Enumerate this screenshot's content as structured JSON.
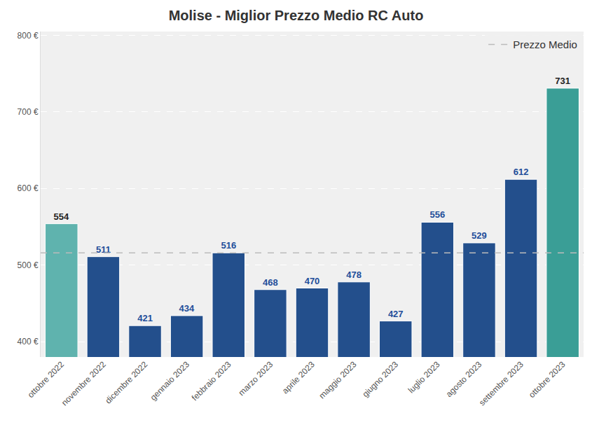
{
  "chart_data": {
    "type": "bar",
    "title": "Molise - Miglior Prezzo Medio RC Auto",
    "categories": [
      "ottobre 2022",
      "novembre 2022",
      "dicembre 2022",
      "gennaio 2023",
      "febbraio 2023",
      "marzo 2023",
      "aprile 2023",
      "maggio 2023",
      "giugno 2023",
      "luglio 2023",
      "agosto 2023",
      "settembre 2023",
      "ottobre 2023"
    ],
    "values": [
      554,
      511,
      421,
      434,
      516,
      468,
      470,
      478,
      427,
      556,
      529,
      612,
      731
    ],
    "colors": [
      "#5fb3ae",
      "#234f8c",
      "#234f8c",
      "#234f8c",
      "#234f8c",
      "#234f8c",
      "#234f8c",
      "#234f8c",
      "#234f8c",
      "#234f8c",
      "#234f8c",
      "#234f8c",
      "#3a9e96"
    ],
    "average_line": {
      "name": "Prezzo Medio",
      "value": 516
    },
    "ylim": [
      380,
      805
    ],
    "yticks": [
      {
        "value": 400,
        "label": "400 €"
      },
      {
        "value": 500,
        "label": "500 €"
      },
      {
        "value": 600,
        "label": "600 €"
      },
      {
        "value": 700,
        "label": "700 €"
      },
      {
        "value": 800,
        "label": "800 €"
      }
    ],
    "grid": true,
    "data_labels": true,
    "legend": "upper right"
  }
}
